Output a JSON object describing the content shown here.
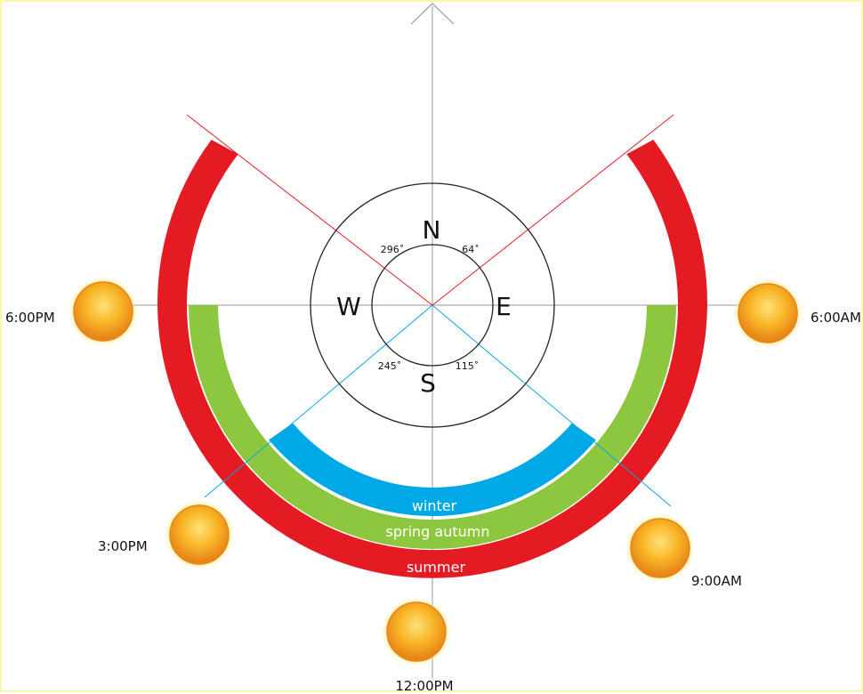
{
  "compass": {
    "north": "N",
    "south": "S",
    "east": "E",
    "west": "W",
    "angle_ne": "64˚",
    "angle_nw": "296˚",
    "angle_se": "115˚",
    "angle_sw": "245˚"
  },
  "bands": {
    "winter": "winter",
    "spring_autumn": "spring autumn",
    "summer": "summer"
  },
  "times": {
    "t_6am": "6:00AM",
    "t_9am": "9:00AM",
    "t_12pm": "12:00PM",
    "t_3pm": "3:00PM",
    "t_6pm": "6:00PM"
  },
  "colors": {
    "summer": "#e51b24",
    "spring_autumn": "#8dc63f",
    "winter": "#00a9e6",
    "sun_fill": "#f7a21b",
    "sun_glow": "#fbd15b",
    "axis": "#999999"
  }
}
